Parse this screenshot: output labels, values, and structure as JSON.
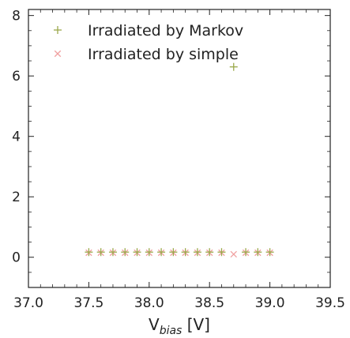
{
  "chart_data": {
    "type": "scatter",
    "title": "",
    "xlabel": {
      "main": "V",
      "sub": "bias",
      "unit": " [V]"
    },
    "ylabel": "",
    "xlim": [
      37.0,
      39.5
    ],
    "ylim": [
      -1.0,
      8.2
    ],
    "x_ticks": [
      37.0,
      37.5,
      38.0,
      38.5,
      39.0,
      39.5
    ],
    "x_tick_labels": [
      "37.0",
      "37.5",
      "38.0",
      "38.5",
      "39.0",
      "39.5"
    ],
    "y_ticks": [
      0,
      2,
      4,
      6,
      8
    ],
    "y_tick_labels": [
      "0",
      "2",
      "4",
      "6",
      "8"
    ],
    "grid": false,
    "legend_position": "top-left",
    "series": [
      {
        "name": "Irradiated by Markov",
        "marker": "plus",
        "color": "#9aa84a",
        "x": [
          37.5,
          37.6,
          37.7,
          37.8,
          37.9,
          38.0,
          38.1,
          38.2,
          38.3,
          38.4,
          38.5,
          38.6,
          38.7,
          38.8,
          38.9,
          39.0
        ],
        "y": [
          0.17,
          0.17,
          0.17,
          0.17,
          0.17,
          0.17,
          0.17,
          0.17,
          0.17,
          0.17,
          0.17,
          0.17,
          6.3,
          0.17,
          0.17,
          0.17
        ]
      },
      {
        "name": "Irradiated by simple",
        "marker": "x",
        "color": "#f0a0a0",
        "x": [
          37.5,
          37.6,
          37.7,
          37.8,
          37.9,
          38.0,
          38.1,
          38.2,
          38.3,
          38.4,
          38.5,
          38.6,
          38.7,
          38.8,
          38.9,
          39.0
        ],
        "y": [
          0.15,
          0.15,
          0.15,
          0.15,
          0.15,
          0.15,
          0.15,
          0.15,
          0.15,
          0.15,
          0.15,
          0.15,
          0.1,
          0.15,
          0.15,
          0.15
        ]
      }
    ]
  }
}
